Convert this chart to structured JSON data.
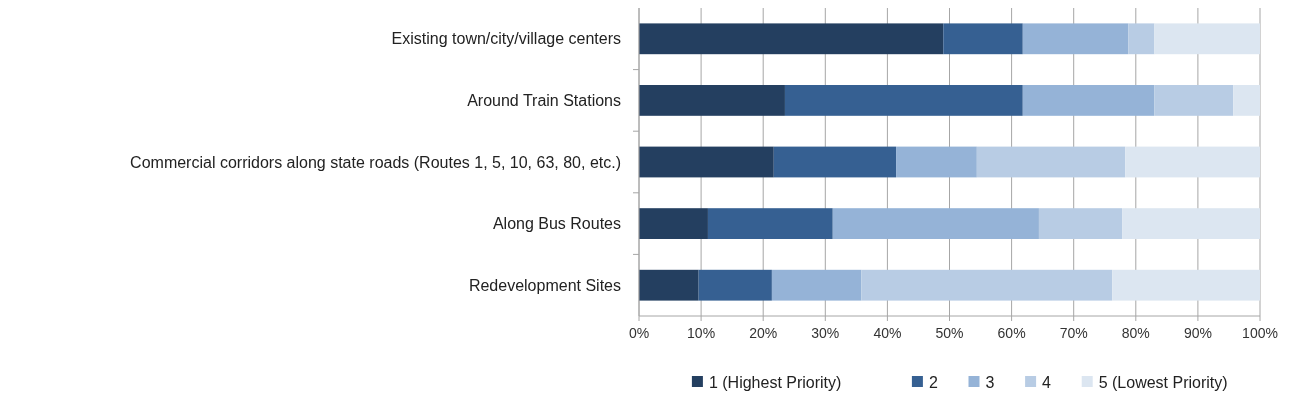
{
  "chart_data": {
    "type": "bar",
    "orientation": "horizontal",
    "stacked": true,
    "categories": [
      "Existing town/city/village centers",
      "Around Train Stations",
      "Commercial corridors along state roads (Routes 1, 5, 10, 63, 80, etc.)",
      "Along Bus Routes",
      "Redevelopment Sites"
    ],
    "series": [
      {
        "name": "1 (Highest Priority)",
        "color": "#243f60",
        "values": [
          49.0,
          23.5,
          21.7,
          11.1,
          9.6
        ]
      },
      {
        "name": "2",
        "color": "#366092",
        "values": [
          12.8,
          38.3,
          19.7,
          20.1,
          11.8
        ]
      },
      {
        "name": "3",
        "color": "#95b3d7",
        "values": [
          17.0,
          21.2,
          13.0,
          33.2,
          14.4
        ]
      },
      {
        "name": "4",
        "color": "#b8cce4",
        "values": [
          4.2,
          12.7,
          23.9,
          13.4,
          40.4
        ]
      },
      {
        "name": "5 (Lowest Priority)",
        "color": "#dce6f1",
        "values": [
          17.0,
          4.3,
          21.7,
          22.2,
          23.8
        ]
      }
    ],
    "xlim": [
      0,
      100
    ],
    "xticks": [
      {
        "value": 0,
        "label": "0%"
      },
      {
        "value": 10,
        "label": "10%"
      },
      {
        "value": 20,
        "label": "20%"
      },
      {
        "value": 30,
        "label": "30%"
      },
      {
        "value": 40,
        "label": "40%"
      },
      {
        "value": 50,
        "label": "50%"
      },
      {
        "value": 60,
        "label": "60%"
      },
      {
        "value": 70,
        "label": "70%"
      },
      {
        "value": 80,
        "label": "80%"
      },
      {
        "value": 90,
        "label": "90%"
      },
      {
        "value": 100,
        "label": "100%"
      }
    ],
    "grid": "x",
    "legend": "bottom"
  }
}
